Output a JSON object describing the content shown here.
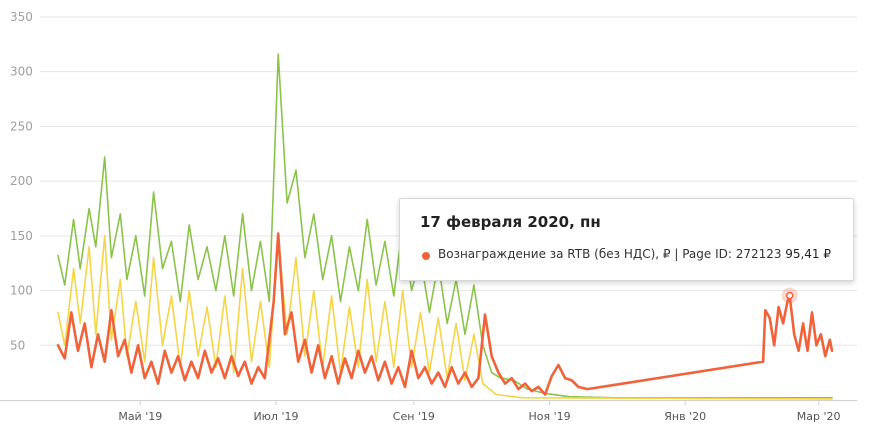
{
  "chart_data": {
    "type": "line",
    "y_ticks": [
      "50",
      "100",
      "150",
      "200",
      "250",
      "300",
      "350"
    ],
    "ylim": [
      0,
      360
    ],
    "x_tick_labels": [
      "Май '19",
      "Июл '19",
      "Сен '19",
      "Ноя '19",
      "Янв '20",
      "Мар '20"
    ],
    "x_tick_dates": [
      "2019-05-01",
      "2019-07-01",
      "2019-09-01",
      "2019-11-01",
      "2020-01-01",
      "2020-03-01"
    ],
    "xlim": [
      "2019-03-25",
      "2020-03-07"
    ],
    "grid": true,
    "series": [
      {
        "color": "#8bc34a",
        "points": [
          [
            "2019-03-25",
            132
          ],
          [
            "2019-03-28",
            105
          ],
          [
            "2019-04-01",
            165
          ],
          [
            "2019-04-04",
            120
          ],
          [
            "2019-04-08",
            175
          ],
          [
            "2019-04-11",
            140
          ],
          [
            "2019-04-15",
            222
          ],
          [
            "2019-04-18",
            130
          ],
          [
            "2019-04-22",
            170
          ],
          [
            "2019-04-25",
            110
          ],
          [
            "2019-04-29",
            150
          ],
          [
            "2019-05-03",
            95
          ],
          [
            "2019-05-07",
            190
          ],
          [
            "2019-05-11",
            120
          ],
          [
            "2019-05-15",
            145
          ],
          [
            "2019-05-19",
            90
          ],
          [
            "2019-05-23",
            160
          ],
          [
            "2019-05-27",
            110
          ],
          [
            "2019-05-31",
            140
          ],
          [
            "2019-06-04",
            100
          ],
          [
            "2019-06-08",
            150
          ],
          [
            "2019-06-12",
            95
          ],
          [
            "2019-06-16",
            170
          ],
          [
            "2019-06-20",
            100
          ],
          [
            "2019-06-24",
            145
          ],
          [
            "2019-06-28",
            90
          ],
          [
            "2019-07-02",
            316
          ],
          [
            "2019-07-06",
            180
          ],
          [
            "2019-07-10",
            210
          ],
          [
            "2019-07-14",
            130
          ],
          [
            "2019-07-18",
            170
          ],
          [
            "2019-07-22",
            110
          ],
          [
            "2019-07-26",
            150
          ],
          [
            "2019-07-30",
            90
          ],
          [
            "2019-08-03",
            140
          ],
          [
            "2019-08-07",
            100
          ],
          [
            "2019-08-11",
            165
          ],
          [
            "2019-08-15",
            105
          ],
          [
            "2019-08-19",
            145
          ],
          [
            "2019-08-23",
            95
          ],
          [
            "2019-08-27",
            160
          ],
          [
            "2019-08-31",
            100
          ],
          [
            "2019-09-04",
            130
          ],
          [
            "2019-09-08",
            80
          ],
          [
            "2019-09-12",
            125
          ],
          [
            "2019-09-16",
            70
          ],
          [
            "2019-09-20",
            110
          ],
          [
            "2019-09-24",
            60
          ],
          [
            "2019-09-28",
            105
          ],
          [
            "2019-10-02",
            50
          ],
          [
            "2019-10-06",
            25
          ],
          [
            "2019-10-10",
            20
          ],
          [
            "2019-10-16",
            18
          ],
          [
            "2019-10-22",
            10
          ],
          [
            "2019-10-30",
            6
          ],
          [
            "2019-11-10",
            3
          ],
          [
            "2019-12-01",
            2
          ],
          [
            "2020-03-07",
            2
          ]
        ]
      },
      {
        "color": "#f5d547",
        "points": [
          [
            "2019-03-25",
            80
          ],
          [
            "2019-03-28",
            50
          ],
          [
            "2019-04-01",
            120
          ],
          [
            "2019-04-04",
            70
          ],
          [
            "2019-04-08",
            140
          ],
          [
            "2019-04-11",
            60
          ],
          [
            "2019-04-15",
            150
          ],
          [
            "2019-04-18",
            55
          ],
          [
            "2019-04-22",
            110
          ],
          [
            "2019-04-25",
            40
          ],
          [
            "2019-04-29",
            90
          ],
          [
            "2019-05-03",
            35
          ],
          [
            "2019-05-07",
            130
          ],
          [
            "2019-05-11",
            50
          ],
          [
            "2019-05-15",
            95
          ],
          [
            "2019-05-19",
            30
          ],
          [
            "2019-05-23",
            100
          ],
          [
            "2019-05-27",
            40
          ],
          [
            "2019-05-31",
            85
          ],
          [
            "2019-06-04",
            30
          ],
          [
            "2019-06-08",
            95
          ],
          [
            "2019-06-12",
            25
          ],
          [
            "2019-06-16",
            120
          ],
          [
            "2019-06-20",
            35
          ],
          [
            "2019-06-24",
            90
          ],
          [
            "2019-06-28",
            30
          ],
          [
            "2019-07-02",
            150
          ],
          [
            "2019-07-06",
            60
          ],
          [
            "2019-07-10",
            130
          ],
          [
            "2019-07-14",
            40
          ],
          [
            "2019-07-18",
            100
          ],
          [
            "2019-07-22",
            30
          ],
          [
            "2019-07-26",
            95
          ],
          [
            "2019-07-30",
            25
          ],
          [
            "2019-08-03",
            85
          ],
          [
            "2019-08-07",
            30
          ],
          [
            "2019-08-11",
            110
          ],
          [
            "2019-08-15",
            35
          ],
          [
            "2019-08-19",
            90
          ],
          [
            "2019-08-23",
            30
          ],
          [
            "2019-08-27",
            100
          ],
          [
            "2019-08-31",
            30
          ],
          [
            "2019-09-04",
            80
          ],
          [
            "2019-09-08",
            25
          ],
          [
            "2019-09-12",
            75
          ],
          [
            "2019-09-16",
            20
          ],
          [
            "2019-09-20",
            70
          ],
          [
            "2019-09-24",
            18
          ],
          [
            "2019-09-28",
            60
          ],
          [
            "2019-10-02",
            15
          ],
          [
            "2019-10-08",
            5
          ],
          [
            "2019-10-20",
            2
          ],
          [
            "2020-03-07",
            1
          ]
        ]
      },
      {
        "name": "Вознаграждение за RTB (без НДС), ₽ | Page ID: 272123",
        "color": "#f0633a",
        "points": [
          [
            "2019-03-25",
            50
          ],
          [
            "2019-03-28",
            38
          ],
          [
            "2019-03-31",
            80
          ],
          [
            "2019-04-03",
            45
          ],
          [
            "2019-04-06",
            70
          ],
          [
            "2019-04-09",
            30
          ],
          [
            "2019-04-12",
            60
          ],
          [
            "2019-04-15",
            35
          ],
          [
            "2019-04-18",
            82
          ],
          [
            "2019-04-21",
            40
          ],
          [
            "2019-04-24",
            55
          ],
          [
            "2019-04-27",
            25
          ],
          [
            "2019-04-30",
            50
          ],
          [
            "2019-05-03",
            20
          ],
          [
            "2019-05-06",
            35
          ],
          [
            "2019-05-09",
            15
          ],
          [
            "2019-05-12",
            45
          ],
          [
            "2019-05-15",
            25
          ],
          [
            "2019-05-18",
            40
          ],
          [
            "2019-05-21",
            18
          ],
          [
            "2019-05-24",
            35
          ],
          [
            "2019-05-27",
            20
          ],
          [
            "2019-05-30",
            45
          ],
          [
            "2019-06-02",
            25
          ],
          [
            "2019-06-05",
            38
          ],
          [
            "2019-06-08",
            20
          ],
          [
            "2019-06-11",
            40
          ],
          [
            "2019-06-14",
            22
          ],
          [
            "2019-06-17",
            35
          ],
          [
            "2019-06-20",
            15
          ],
          [
            "2019-06-23",
            30
          ],
          [
            "2019-06-26",
            20
          ],
          [
            "2019-06-30",
            90
          ],
          [
            "2019-07-02",
            152
          ],
          [
            "2019-07-05",
            60
          ],
          [
            "2019-07-08",
            80
          ],
          [
            "2019-07-11",
            35
          ],
          [
            "2019-07-14",
            55
          ],
          [
            "2019-07-17",
            25
          ],
          [
            "2019-07-20",
            50
          ],
          [
            "2019-07-23",
            20
          ],
          [
            "2019-07-26",
            40
          ],
          [
            "2019-07-29",
            15
          ],
          [
            "2019-08-01",
            38
          ],
          [
            "2019-08-04",
            20
          ],
          [
            "2019-08-07",
            45
          ],
          [
            "2019-08-10",
            25
          ],
          [
            "2019-08-13",
            40
          ],
          [
            "2019-08-16",
            18
          ],
          [
            "2019-08-19",
            35
          ],
          [
            "2019-08-22",
            15
          ],
          [
            "2019-08-25",
            30
          ],
          [
            "2019-08-28",
            12
          ],
          [
            "2019-08-31",
            45
          ],
          [
            "2019-09-03",
            20
          ],
          [
            "2019-09-06",
            30
          ],
          [
            "2019-09-09",
            15
          ],
          [
            "2019-09-12",
            25
          ],
          [
            "2019-09-15",
            12
          ],
          [
            "2019-09-18",
            30
          ],
          [
            "2019-09-21",
            15
          ],
          [
            "2019-09-24",
            25
          ],
          [
            "2019-09-27",
            12
          ],
          [
            "2019-09-30",
            20
          ],
          [
            "2019-10-03",
            78
          ],
          [
            "2019-10-06",
            40
          ],
          [
            "2019-10-09",
            25
          ],
          [
            "2019-10-12",
            15
          ],
          [
            "2019-10-15",
            20
          ],
          [
            "2019-10-18",
            10
          ],
          [
            "2019-10-21",
            15
          ],
          [
            "2019-10-24",
            8
          ],
          [
            "2019-10-27",
            12
          ],
          [
            "2019-10-30",
            5
          ],
          [
            "2019-11-02",
            22
          ],
          [
            "2019-11-05",
            32
          ],
          [
            "2019-11-08",
            20
          ],
          [
            "2019-11-11",
            18
          ],
          [
            "2019-11-14",
            12
          ],
          [
            "2019-11-18",
            10
          ],
          [
            "2020-02-05",
            35
          ],
          [
            "2020-02-06",
            82
          ],
          [
            "2020-02-08",
            75
          ],
          [
            "2020-02-10",
            50
          ],
          [
            "2020-02-12",
            85
          ],
          [
            "2020-02-14",
            70
          ],
          [
            "2020-02-16",
            90
          ],
          [
            "2020-02-17",
            95
          ],
          [
            "2020-02-19",
            60
          ],
          [
            "2020-02-21",
            45
          ],
          [
            "2020-02-23",
            70
          ],
          [
            "2020-02-25",
            45
          ],
          [
            "2020-02-27",
            80
          ],
          [
            "2020-02-29",
            50
          ],
          [
            "2020-03-02",
            60
          ],
          [
            "2020-03-04",
            40
          ],
          [
            "2020-03-06",
            55
          ],
          [
            "2020-03-07",
            45
          ]
        ]
      }
    ],
    "highlight": {
      "date": "2020-02-17",
      "value": 95.41,
      "series_index": 2
    }
  },
  "tooltip": {
    "date": "17 февраля 2020, пн",
    "label": "Вознаграждение за RTB (без НДС), ₽ | Page ID: 272123",
    "value": "95,41 ₽",
    "color": "#f0633a"
  }
}
